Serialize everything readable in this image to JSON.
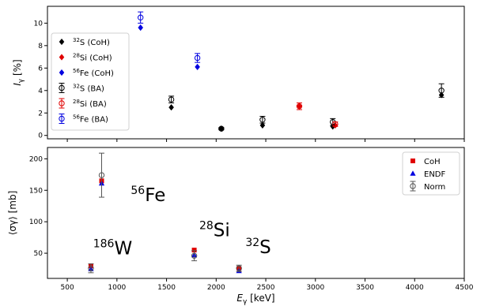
{
  "chart_data": [
    {
      "type": "scatter",
      "xlim": [
        300,
        4500
      ],
      "ylim": [
        -0.3,
        11.5
      ],
      "yticks": [
        0,
        2,
        4,
        6,
        8,
        10
      ],
      "ylabel": {
        "main": "I",
        "sub": "γ",
        "rest": " [%]"
      },
      "grid": false,
      "legend_position": "top-left",
      "series": [
        {
          "name": {
            "sup": "32",
            "text": "S (CoH)"
          },
          "marker": "diamond-filled",
          "color": "#000000",
          "x": [
            1548,
            2052,
            2467,
            3175,
            4270
          ],
          "y": [
            2.5,
            0.6,
            0.9,
            0.8,
            3.6
          ]
        },
        {
          "name": {
            "sup": "28",
            "text": "Si (CoH)"
          },
          "marker": "diamond-filled",
          "color": "#e00000",
          "x": [
            2838,
            3200
          ],
          "y": [
            2.6,
            0.9
          ]
        },
        {
          "name": {
            "sup": "56",
            "text": "Fe (CoH)"
          },
          "marker": "diamond-filled",
          "color": "#0000e0",
          "x": [
            1238,
            1811
          ],
          "y": [
            9.6,
            6.1
          ]
        },
        {
          "name": {
            "sup": "32",
            "text": "S (BA)"
          },
          "marker": "circle-open",
          "color": "#000000",
          "x": [
            1548,
            2052,
            2467,
            3175,
            4270
          ],
          "y": [
            3.2,
            0.6,
            1.4,
            1.2,
            4.0
          ],
          "yerr": [
            0.3,
            0.1,
            0.3,
            0.3,
            0.6
          ]
        },
        {
          "name": {
            "sup": "28",
            "text": "Si (BA)"
          },
          "marker": "circle-open",
          "color": "#e00000",
          "x": [
            2838,
            3200
          ],
          "y": [
            2.6,
            1.0
          ],
          "yerr": [
            0.3,
            0.2
          ]
        },
        {
          "name": {
            "sup": "56",
            "text": "Fe (BA)"
          },
          "marker": "circle-open",
          "color": "#0000e0",
          "x": [
            1238,
            1811
          ],
          "y": [
            10.5,
            6.9
          ],
          "yerr": [
            0.5,
            0.4
          ]
        }
      ]
    },
    {
      "type": "scatter",
      "xlim": [
        300,
        4500
      ],
      "ylim": [
        10,
        218
      ],
      "xticks": [
        500,
        1000,
        1500,
        2000,
        2500,
        3000,
        3500,
        4000,
        4500
      ],
      "yticks": [
        50,
        100,
        150,
        200
      ],
      "xlabel": {
        "main": "E",
        "sub": "γ",
        "rest": " [keV]"
      },
      "ylabel": "⟨σγ⟩ [mb]",
      "grid": false,
      "legend_position": "top-right",
      "series": [
        {
          "name": "CoH",
          "marker": "square-filled",
          "color": "#e00000",
          "x": [
            738,
            846,
            1779,
            2230
          ],
          "y": [
            30,
            165,
            55,
            26
          ]
        },
        {
          "name": "ENDF",
          "marker": "triangle-filled",
          "color": "#0000e0",
          "x": [
            738,
            846,
            1779,
            2230
          ],
          "y": [
            25,
            161,
            47,
            22
          ]
        },
        {
          "name": "Norm",
          "marker": "circle-open",
          "color": "#555555",
          "x": [
            738,
            846,
            1779,
            2230
          ],
          "y": [
            26,
            174,
            46,
            26
          ],
          "yerr": [
            7,
            35,
            8,
            5
          ]
        }
      ],
      "annotations": [
        {
          "sup": "56",
          "text": "Fe",
          "x": 1140,
          "y": 133
        },
        {
          "sup": "186",
          "text": "W",
          "x": 760,
          "y": 48
        },
        {
          "sup": "28",
          "text": "Si",
          "x": 1830,
          "y": 77
        },
        {
          "sup": "32",
          "text": "S",
          "x": 2295,
          "y": 50
        }
      ]
    }
  ]
}
